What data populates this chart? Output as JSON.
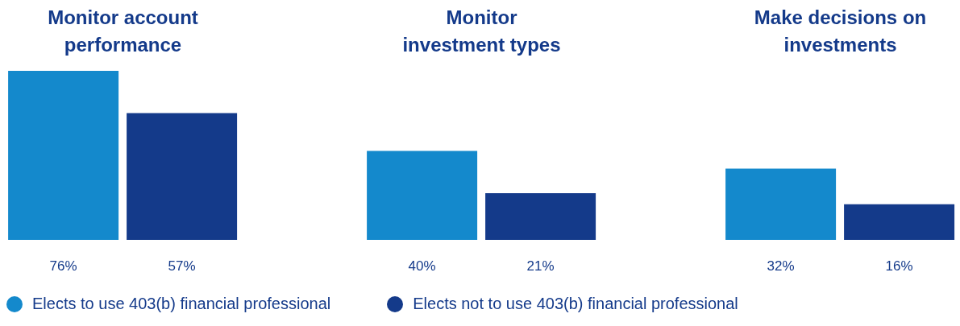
{
  "chart_data": {
    "type": "bar",
    "categories": [
      "Monitor account performance",
      "Monitor investment types",
      "Make decisions on investments"
    ],
    "series": [
      {
        "name": "Elects to use 403(b) financial professional",
        "color": "#1489cc",
        "values": [
          76,
          40,
          32
        ],
        "value_labels": [
          "76%",
          "40%",
          "32%"
        ]
      },
      {
        "name": "Elects not to use 403(b) financial professional",
        "color": "#143a8a",
        "values": [
          57,
          21,
          16
        ],
        "value_labels": [
          "57%",
          "21%",
          "16%"
        ]
      }
    ],
    "legend": "bottom left"
  }
}
